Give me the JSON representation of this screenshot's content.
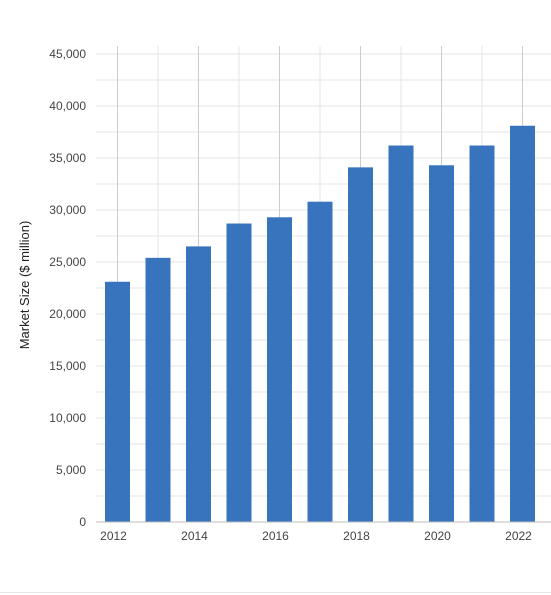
{
  "chart_data": {
    "type": "bar",
    "title": "",
    "xlabel": "",
    "ylabel": "Market Size ($ million)",
    "x": [
      2012,
      2013,
      2014,
      2015,
      2016,
      2017,
      2018,
      2019,
      2020,
      2021,
      2022
    ],
    "values": [
      23100,
      25400,
      26500,
      28700,
      29300,
      30800,
      34100,
      36200,
      34300,
      36200,
      38100
    ],
    "x_tick_labels": [
      "2012",
      "2014",
      "2016",
      "2018",
      "2020",
      "2022"
    ],
    "y_ticks": [
      0,
      5000,
      10000,
      15000,
      20000,
      25000,
      30000,
      35000,
      40000,
      45000
    ],
    "y_tick_labels": [
      "0",
      "5,000",
      "10,000",
      "15,000",
      "20,000",
      "25,000",
      "30,000",
      "35,000",
      "40,000",
      "45,000"
    ],
    "ylim": [
      0,
      45000
    ],
    "grid": true,
    "legend": "none"
  },
  "colors": {
    "bar": "#3873bd",
    "gridline": "#e6e6e6",
    "major_vertical_gridline": "#cccccc",
    "axis_line": "#bdbdbd",
    "tick_label": "#444444"
  }
}
